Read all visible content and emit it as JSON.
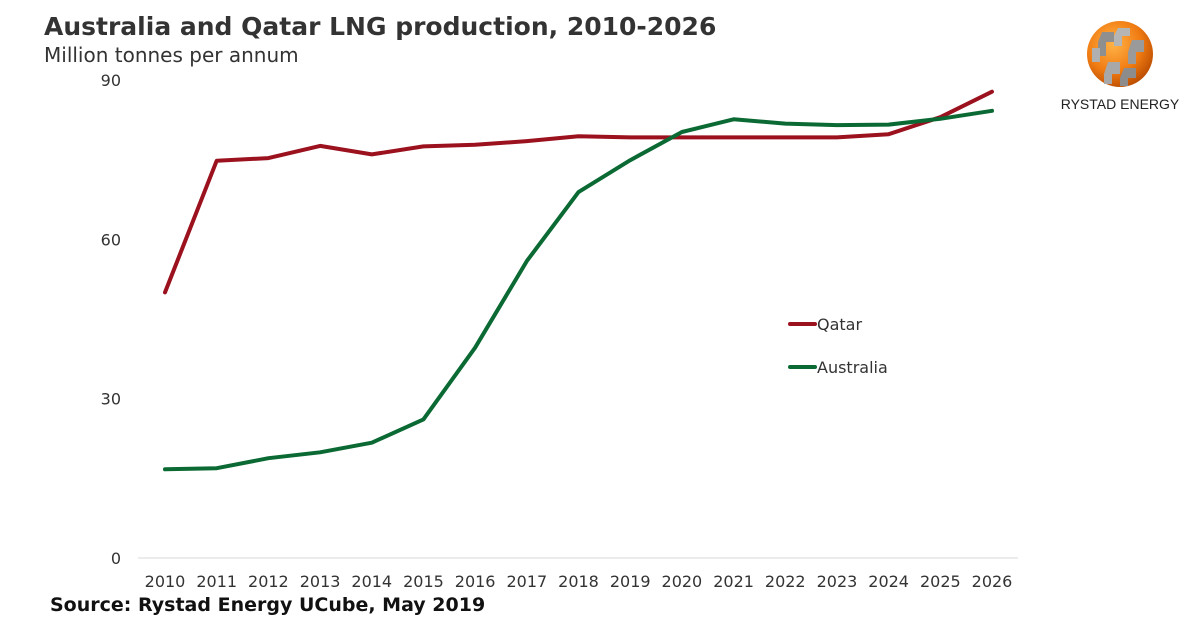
{
  "chart_data": {
    "type": "line",
    "title": "Australia and Qatar LNG production, 2010-2026",
    "subtitle": "Million tonnes per annum",
    "xlabel": "",
    "ylabel": "",
    "x": [
      "2010",
      "2011",
      "2012",
      "2013",
      "2014",
      "2015",
      "2016",
      "2017",
      "2018",
      "2019",
      "2020",
      "2021",
      "2022",
      "2023",
      "2024",
      "2025",
      "2026"
    ],
    "ylim": [
      0,
      90
    ],
    "yticks": [
      "0",
      "30",
      "60",
      "90"
    ],
    "series": [
      {
        "name": "Qatar",
        "color": "#9b111e",
        "values": [
          50,
          74.8,
          75.3,
          77.6,
          76,
          77.5,
          77.8,
          78.5,
          79.4,
          79.2,
          79.2,
          79.2,
          79.2,
          79.2,
          79.8,
          83,
          87.8
        ]
      },
      {
        "name": "Australia",
        "color": "#0b6a33",
        "values": [
          16.7,
          16.9,
          18.8,
          19.9,
          21.7,
          26.1,
          39.6,
          55.9,
          68.9,
          74.9,
          80.2,
          82.6,
          81.8,
          81.5,
          81.6,
          82.7,
          84.2
        ]
      }
    ],
    "legend_position": "center-right",
    "source": "Source: Rystad Energy UCube, May 2019"
  },
  "branding": {
    "logo_text": "RYSTAD ENERGY"
  }
}
